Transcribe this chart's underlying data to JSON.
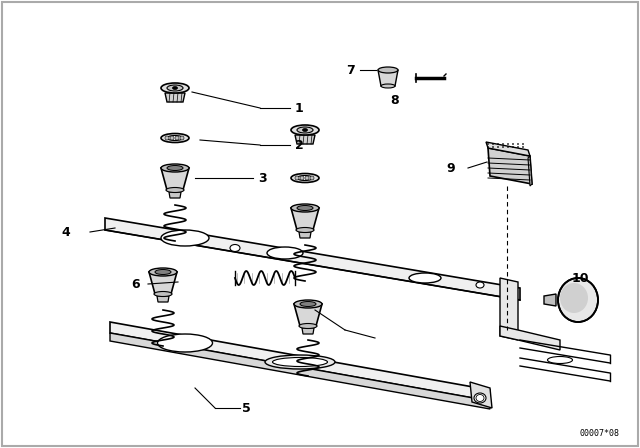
{
  "background_color": "#ffffff",
  "line_color": "#000000",
  "diagram_id": "00007*08",
  "figsize": [
    6.4,
    4.48
  ],
  "dpi": 100
}
